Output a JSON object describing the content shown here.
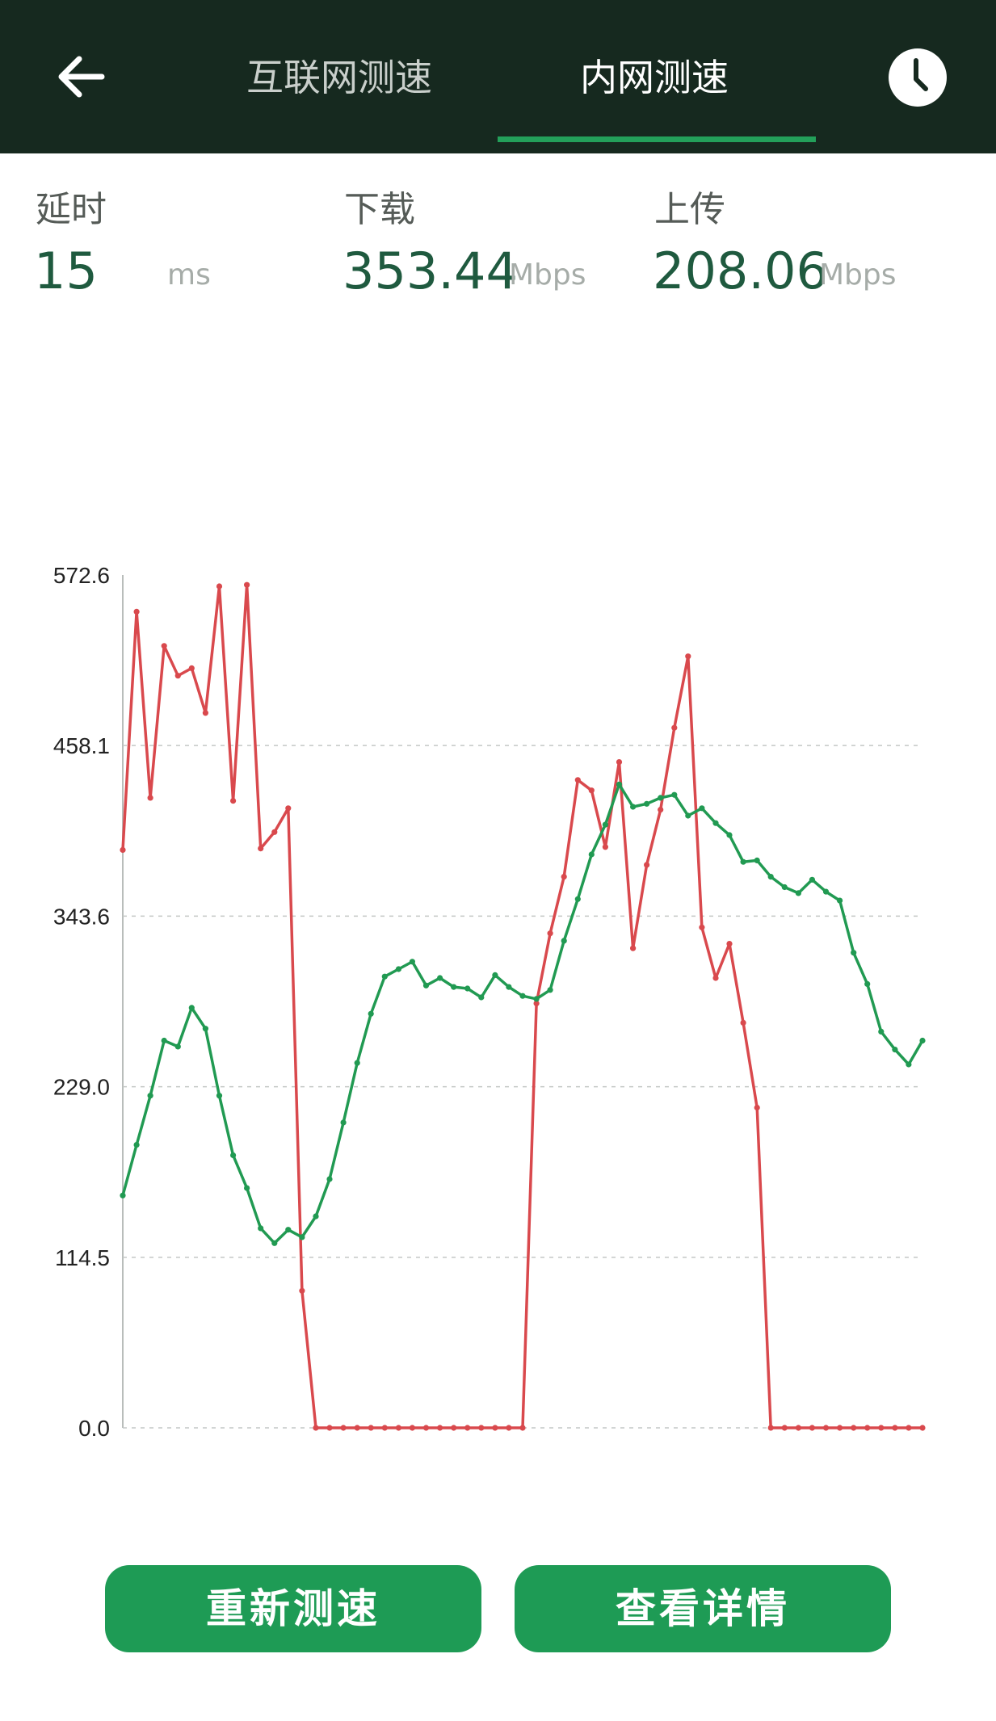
{
  "header": {
    "tabs": [
      {
        "label": "互联网测速",
        "active": false
      },
      {
        "label": "内网测速",
        "active": true
      }
    ],
    "back_icon": "arrow-left-icon",
    "history_icon": "clock-icon",
    "background_color": "#16291f",
    "accent_color": "#23a05a"
  },
  "metrics": {
    "latency": {
      "label": "延时",
      "value": "15",
      "unit": "ms"
    },
    "download": {
      "label": "下载",
      "value": "353.44",
      "unit": "Mbps"
    },
    "upload": {
      "label": "上传",
      "value": "208.06",
      "unit": "Mbps"
    }
  },
  "chart_data": {
    "type": "line",
    "y_ticks": [
      "572.6",
      "458.1",
      "343.6",
      "229.0",
      "114.5",
      "0.0"
    ],
    "ylim": [
      0,
      572.6
    ],
    "grid": "dashed horizontal",
    "series": [
      {
        "color": "#d9494d",
        "values": [
          388,
          548,
          423,
          525,
          505,
          510,
          480,
          565,
          421,
          566,
          389,
          400,
          416,
          92,
          0,
          0,
          0,
          0,
          0,
          0,
          0,
          0,
          0,
          0,
          0,
          0,
          0,
          0,
          0,
          0,
          285,
          332,
          370,
          435,
          428,
          390,
          447,
          322,
          378,
          415,
          470,
          518,
          336,
          302,
          325,
          272,
          215,
          0,
          0,
          0,
          0,
          0,
          0,
          0,
          0,
          0,
          0,
          0,
          0
        ]
      },
      {
        "color": "#219a52",
        "values": [
          156,
          190,
          223,
          260,
          256,
          282,
          268,
          223,
          183,
          161,
          134,
          124,
          133,
          128,
          142,
          167,
          205,
          245,
          278,
          303,
          308,
          313,
          297,
          302,
          296,
          295,
          289,
          304,
          296,
          290,
          288,
          294,
          327,
          355,
          385,
          405,
          432,
          417,
          419,
          423,
          425,
          411,
          416,
          406,
          398,
          380,
          381,
          370,
          363,
          359,
          368,
          360,
          354,
          319,
          298,
          266,
          254,
          244,
          260
        ]
      }
    ]
  },
  "buttons": {
    "retest": "重新测速",
    "details": "查看详情"
  }
}
